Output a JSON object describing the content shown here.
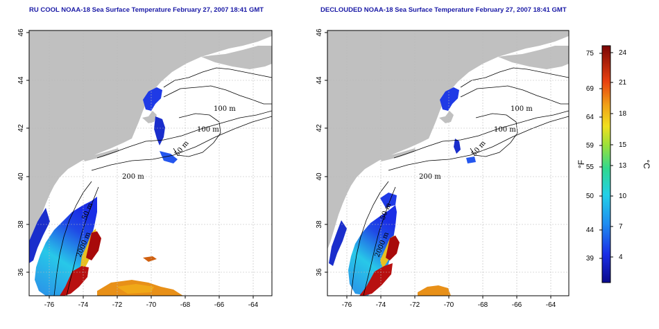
{
  "titles": {
    "left": "RU COOL NOAA-18 Sea Surface Temperature February 27, 2007 18:41 GMT",
    "right": "DECLOUDED NOAA-18 Sea Surface Temperature February 27, 2007 18:41 GMT"
  },
  "map": {
    "lon_ticks": [
      "-76",
      "-74",
      "-72",
      "-70",
      "-68",
      "-66",
      "-64"
    ],
    "lat_ticks": [
      "46",
      "44",
      "42",
      "40",
      "38",
      "36"
    ],
    "lon_range": [
      -77.2,
      -62.8
    ],
    "lat_range": [
      35.0,
      46.0
    ],
    "contour_labels": [
      "100 m",
      "100 m",
      "50 m",
      "200 m",
      "2000 m",
      "50 m"
    ]
  },
  "colorbar": {
    "fahrenheit_ticks": [
      "75",
      "69",
      "64",
      "59",
      "55",
      "50",
      "44",
      "39"
    ],
    "celsius_ticks": [
      "24",
      "21",
      "18",
      "15",
      "13",
      "10",
      "7",
      "4"
    ],
    "fahrenheit_label": "°F",
    "celsius_label": "°C"
  },
  "colors": {
    "land": "#c0c0c0",
    "title": "#1a1aa6",
    "cold": "#1f3ae6",
    "warm": "#c41010"
  }
}
